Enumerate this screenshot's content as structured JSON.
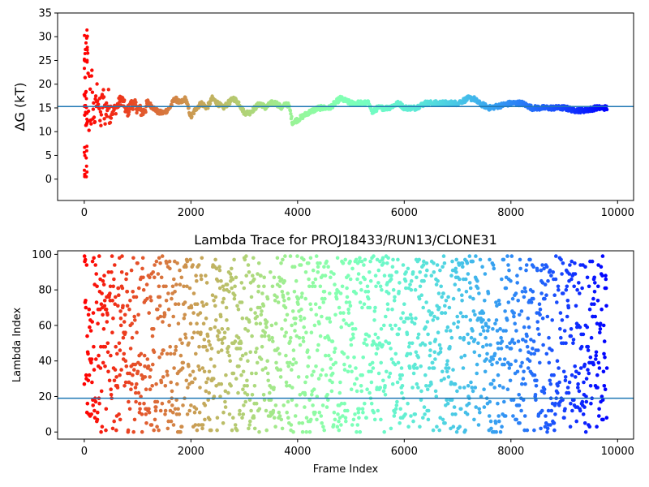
{
  "chart_data": [
    {
      "type": "scatter",
      "title": "",
      "xlabel": "",
      "ylabel": "ΔG (kT)",
      "xlim": [
        -500,
        10300
      ],
      "ylim": [
        -4.5,
        35
      ],
      "xticks": [
        0,
        2000,
        4000,
        6000,
        8000,
        10000
      ],
      "xtick_labels": [
        "0",
        "2000",
        "4000",
        "6000",
        "8000",
        "10000"
      ],
      "yticks": [
        0,
        5,
        10,
        15,
        20,
        25,
        30,
        35
      ],
      "ytick_labels": [
        "0",
        "5",
        "10",
        "15",
        "20",
        "25",
        "30",
        "35"
      ],
      "hline": 15.3,
      "hline_color": "#1f77b4",
      "colormap": "rainbow (red at frame 0 to violet at last frame)",
      "n_frames": 9800,
      "series": [
        {
          "values_description": "running free-energy estimate vs frame",
          "x": [
            0,
            20,
            40,
            60,
            80,
            100,
            150,
            200,
            250,
            300,
            350,
            400,
            450,
            500,
            600,
            700,
            800,
            900,
            1000,
            1100,
            1200,
            1300,
            1400,
            1500,
            1600,
            1700,
            1800,
            1900,
            2000,
            2100,
            2200,
            2300,
            2400,
            2500,
            2600,
            2700,
            2800,
            2900,
            3000,
            3100,
            3200,
            3300,
            3400,
            3500,
            3600,
            3700,
            3800,
            3850,
            3900,
            4000,
            4200,
            4400,
            4600,
            4800,
            5000,
            5200,
            5350,
            5400,
            5500,
            5700,
            5900,
            6000,
            6200,
            6400,
            6600,
            6800,
            7000,
            7200,
            7300,
            7400,
            7600,
            7800,
            8000,
            8200,
            8400,
            8600,
            8800,
            9000,
            9200,
            9400,
            9600,
            9800
          ],
          "y": [
            15,
            20,
            12,
            26,
            10,
            18,
            16,
            13,
            19,
            12,
            17,
            14,
            16,
            14,
            15,
            17,
            14,
            16,
            15,
            14,
            16,
            15,
            14,
            14,
            15,
            17,
            16,
            17,
            13,
            15,
            16,
            15,
            17,
            16,
            15,
            16,
            17,
            16,
            14,
            14,
            15,
            16,
            15,
            16,
            16,
            15,
            16,
            15,
            12,
            12.5,
            14,
            15,
            15,
            17,
            16,
            16,
            16,
            14,
            15,
            15,
            16,
            15,
            15,
            16,
            16,
            16,
            16,
            17,
            17,
            16,
            15,
            15.5,
            16,
            16,
            15,
            15,
            15,
            15,
            14.5,
            14.5,
            15,
            15
          ]
        }
      ]
    },
    {
      "type": "scatter",
      "title": "Lambda Trace for PROJ18433/RUN13/CLONE31",
      "xlabel": "Frame Index",
      "ylabel": "Lambda Index",
      "xlim": [
        -500,
        10300
      ],
      "ylim": [
        -4,
        102
      ],
      "xticks": [
        0,
        2000,
        4000,
        6000,
        8000,
        10000
      ],
      "xtick_labels": [
        "0",
        "2000",
        "4000",
        "6000",
        "8000",
        "10000"
      ],
      "yticks": [
        0,
        20,
        40,
        60,
        80,
        100
      ],
      "ytick_labels": [
        "0",
        "20",
        "40",
        "60",
        "80",
        "100"
      ],
      "hline": 19,
      "hline_color": "#1f77b4",
      "colormap": "rainbow (red at frame 0 to violet at last frame)",
      "n_frames": 9800,
      "lambda_range": [
        0,
        99
      ],
      "series": [
        {
          "values_description": "lambda index visited at each frame, approximately uniform over 0-99",
          "x_range": [
            0,
            9800
          ],
          "y_range": [
            0,
            99
          ]
        }
      ]
    }
  ]
}
